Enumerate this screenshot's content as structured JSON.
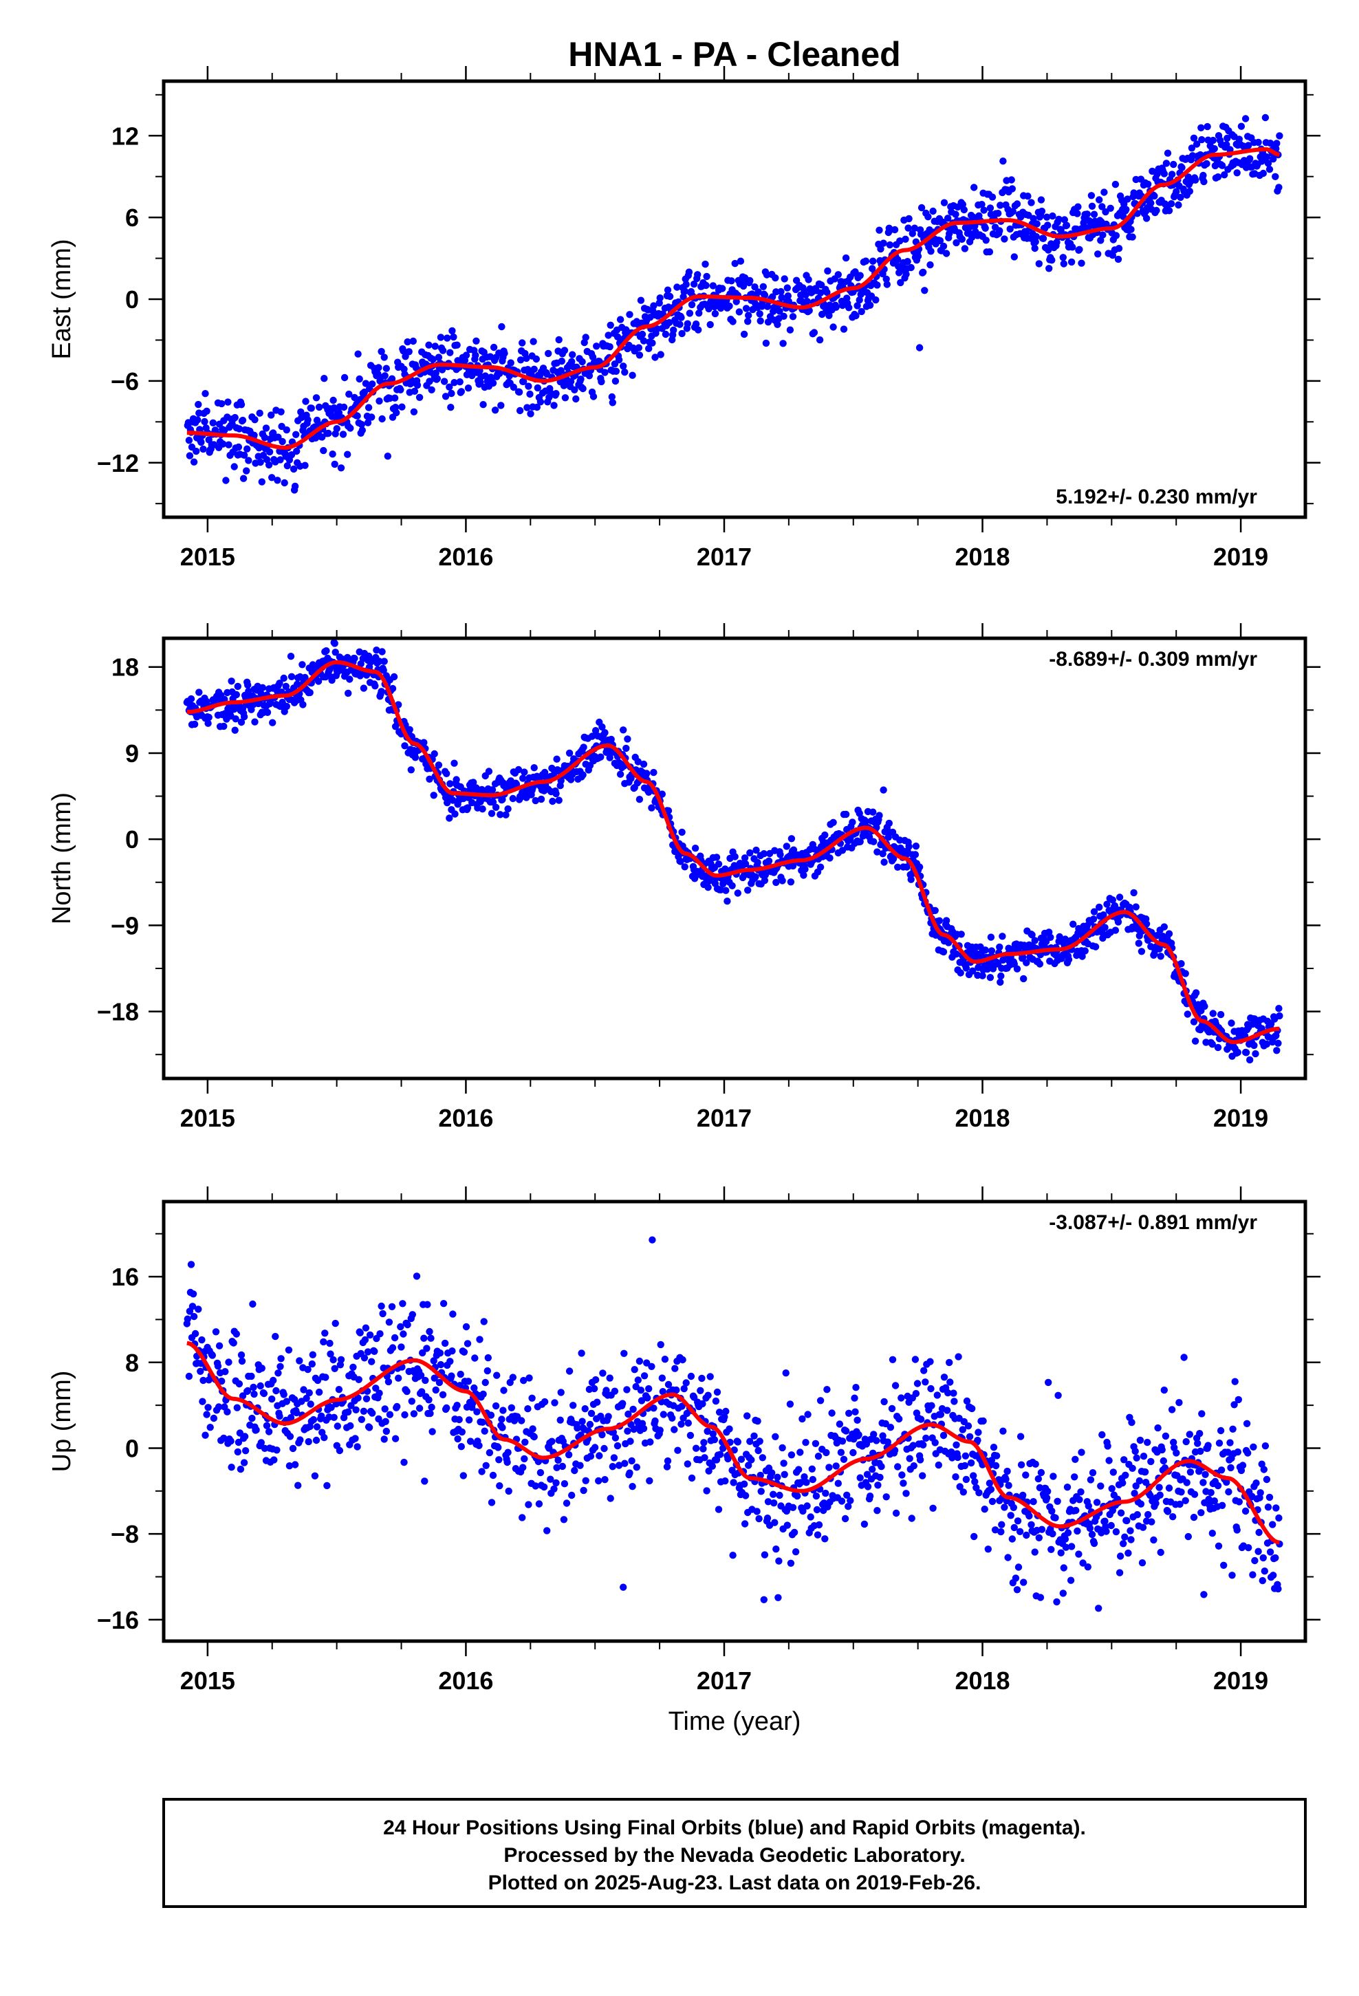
{
  "figure": {
    "title": "HNA1  - PA - Cleaned",
    "xlabel": "Time (year)",
    "footer": [
      "24 Hour Positions Using Final Orbits (blue) and Rapid Orbits (magenta).",
      "Processed by the Nevada Geodetic Laboratory.",
      "Plotted on 2025-Aug-23. Last data on 2019-Feb-26."
    ],
    "colors": {
      "points": "#0000ff",
      "fit": "#ff0000",
      "frame": "#000000"
    }
  },
  "chart_data": [
    {
      "type": "scatter",
      "ylabel": "East (mm)",
      "rate": "5.192+/- 0.230 mm/yr",
      "xlim": [
        2014.83,
        2019.25
      ],
      "ylim": [
        -16,
        16
      ],
      "xticks": [
        2015,
        2016,
        2017,
        2018,
        2019
      ],
      "yticks": [
        12,
        6,
        0,
        -6,
        -12
      ],
      "ytick_labels": [
        "12",
        "6",
        "0",
        "−6",
        "−12"
      ],
      "data_span": [
        2014.92,
        2019.15
      ],
      "trend_line": {
        "x": [
          2014.92,
          2015.1,
          2015.3,
          2015.5,
          2015.7,
          2015.9,
          2016.1,
          2016.3,
          2016.5,
          2016.7,
          2016.9,
          2017.1,
          2017.3,
          2017.5,
          2017.7,
          2017.9,
          2018.1,
          2018.3,
          2018.5,
          2018.7,
          2018.9,
          2019.1,
          2019.15
        ],
        "y": [
          -9.8,
          -10.0,
          -10.9,
          -9.0,
          -6.2,
          -4.8,
          -5.0,
          -6.0,
          -5.0,
          -2.0,
          0.2,
          0.1,
          -0.6,
          0.8,
          3.6,
          5.6,
          5.8,
          4.6,
          5.2,
          8.4,
          10.6,
          11.0,
          10.6
        ]
      },
      "scatter_sd": 1.2
    },
    {
      "type": "scatter",
      "ylabel": "North (mm)",
      "rate": "-8.689+/- 0.309 mm/yr",
      "xlim": [
        2014.83,
        2019.25
      ],
      "ylim": [
        -25,
        21
      ],
      "xticks": [
        2015,
        2016,
        2017,
        2018,
        2019
      ],
      "yticks": [
        18,
        9,
        0,
        -9,
        -18
      ],
      "ytick_labels": [
        "18",
        "9",
        "0",
        "−9",
        "−18"
      ],
      "data_span": [
        2014.92,
        2019.15
      ],
      "trend_line": {
        "x": [
          2014.92,
          2015.1,
          2015.3,
          2015.5,
          2015.65,
          2015.8,
          2015.95,
          2016.1,
          2016.3,
          2016.55,
          2016.7,
          2016.85,
          2016.97,
          2017.1,
          2017.3,
          2017.55,
          2017.7,
          2017.85,
          2017.97,
          2018.1,
          2018.3,
          2018.55,
          2018.7,
          2018.85,
          2018.97,
          2019.15
        ],
        "y": [
          13.3,
          14.3,
          15.0,
          18.5,
          17.5,
          10.0,
          4.8,
          4.6,
          6.0,
          9.8,
          6.0,
          -1.5,
          -3.8,
          -3.2,
          -2.2,
          1.2,
          -2.0,
          -10.0,
          -12.8,
          -12.0,
          -11.5,
          -7.6,
          -11.0,
          -19.0,
          -21.2,
          -19.8
        ]
      },
      "scatter_sd": 1.0
    },
    {
      "type": "scatter",
      "ylabel": "Up (mm)",
      "rate": "-3.087+/- 0.891 mm/yr",
      "xlim": [
        2014.83,
        2019.25
      ],
      "ylim": [
        -18,
        23
      ],
      "xticks": [
        2015,
        2016,
        2017,
        2018,
        2019
      ],
      "yticks": [
        16,
        8,
        0,
        -8,
        -16
      ],
      "ytick_labels": [
        "16",
        "8",
        "0",
        "−8",
        "−16"
      ],
      "data_span": [
        2014.92,
        2019.15
      ],
      "trend_line": {
        "x": [
          2014.92,
          2015.1,
          2015.3,
          2015.5,
          2015.8,
          2016.0,
          2016.15,
          2016.3,
          2016.55,
          2016.8,
          2016.95,
          2017.1,
          2017.3,
          2017.55,
          2017.8,
          2017.95,
          2018.1,
          2018.3,
          2018.55,
          2018.8,
          2018.95,
          2019.15
        ],
        "y": [
          9.8,
          4.6,
          2.3,
          4.5,
          8.2,
          5.3,
          0.8,
          -0.9,
          1.8,
          5.0,
          2.0,
          -2.8,
          -4.0,
          -1.0,
          2.2,
          0.6,
          -4.6,
          -7.3,
          -5.0,
          -1.2,
          -2.8,
          -8.8
        ]
      },
      "scatter_sd": 3.2
    }
  ]
}
